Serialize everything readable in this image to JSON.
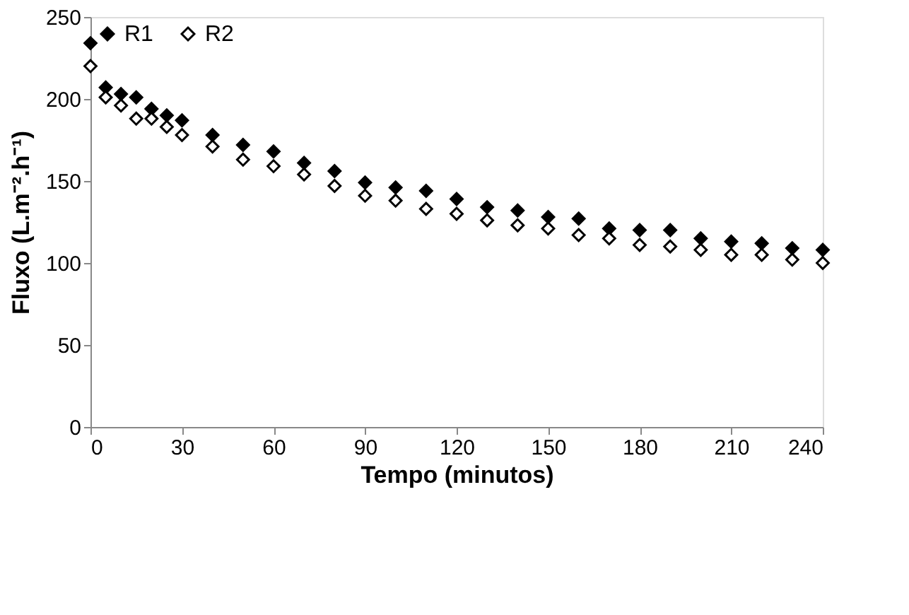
{
  "chart_data": {
    "type": "scatter",
    "xlabel": "Tempo (minutos)",
    "ylabel": "Fluxo (L.m⁻².h⁻¹)",
    "x": [
      0,
      5,
      10,
      15,
      20,
      25,
      30,
      40,
      50,
      60,
      70,
      80,
      90,
      100,
      110,
      120,
      130,
      140,
      150,
      160,
      170,
      180,
      190,
      200,
      210,
      220,
      230,
      240
    ],
    "series": [
      {
        "name": "R1",
        "color": "#000000",
        "values": [
          234,
          207,
          203,
          201,
          194,
          190,
          187,
          178,
          172,
          168,
          161,
          156,
          149,
          146,
          144,
          139,
          134,
          132,
          128,
          127,
          121,
          120,
          120,
          115,
          113,
          112,
          109,
          108
        ]
      },
      {
        "name": "R2",
        "color": "#ffffff",
        "values": [
          220,
          201,
          196,
          188,
          188,
          183,
          178,
          171,
          163,
          159,
          154,
          147,
          141,
          138,
          133,
          130,
          126,
          123,
          121,
          117,
          115,
          111,
          110,
          108,
          105,
          105,
          102,
          100
        ]
      }
    ],
    "xlim": [
      0,
      240
    ],
    "xticks": [
      0,
      30,
      60,
      90,
      120,
      150,
      180,
      210,
      240
    ],
    "ylim": [
      0,
      250
    ],
    "yticks": [
      0,
      50,
      100,
      150,
      200,
      250
    ],
    "grid": false,
    "legend": "top left",
    "marker": "diamond"
  }
}
